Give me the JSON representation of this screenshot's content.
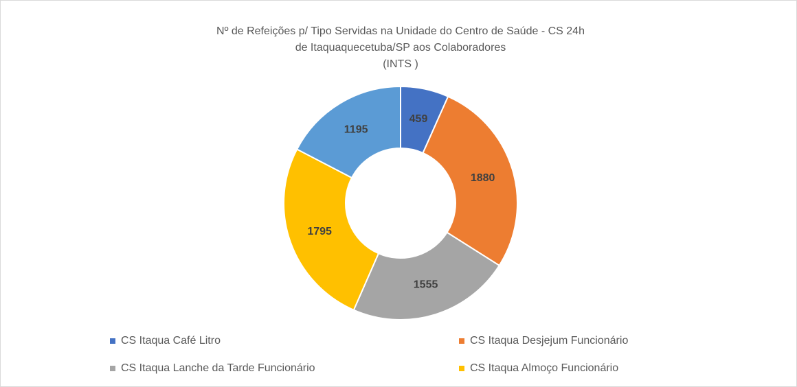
{
  "chart_data": {
    "type": "donut",
    "title": [
      "Nº de Refeições p/ Tipo Servidas na Unidade do Centro de Saúde - CS 24h",
      "de Itaquaquecetuba/SP aos Colaboradores",
      "(INTS )"
    ],
    "categories": [
      "CS Itaqua Café Litro",
      "CS Itaqua Desjejum Funcionário",
      "CS Itaqua Lanche da Tarde Funcionário",
      "CS Itaqua Almoço Funcionário",
      null
    ],
    "values": [
      459,
      1880,
      1555,
      1795,
      1195
    ],
    "colors": [
      "#4472c4",
      "#ed7d31",
      "#a5a5a5",
      "#ffc000",
      "#5b9bd5"
    ],
    "legend": "bottom"
  }
}
